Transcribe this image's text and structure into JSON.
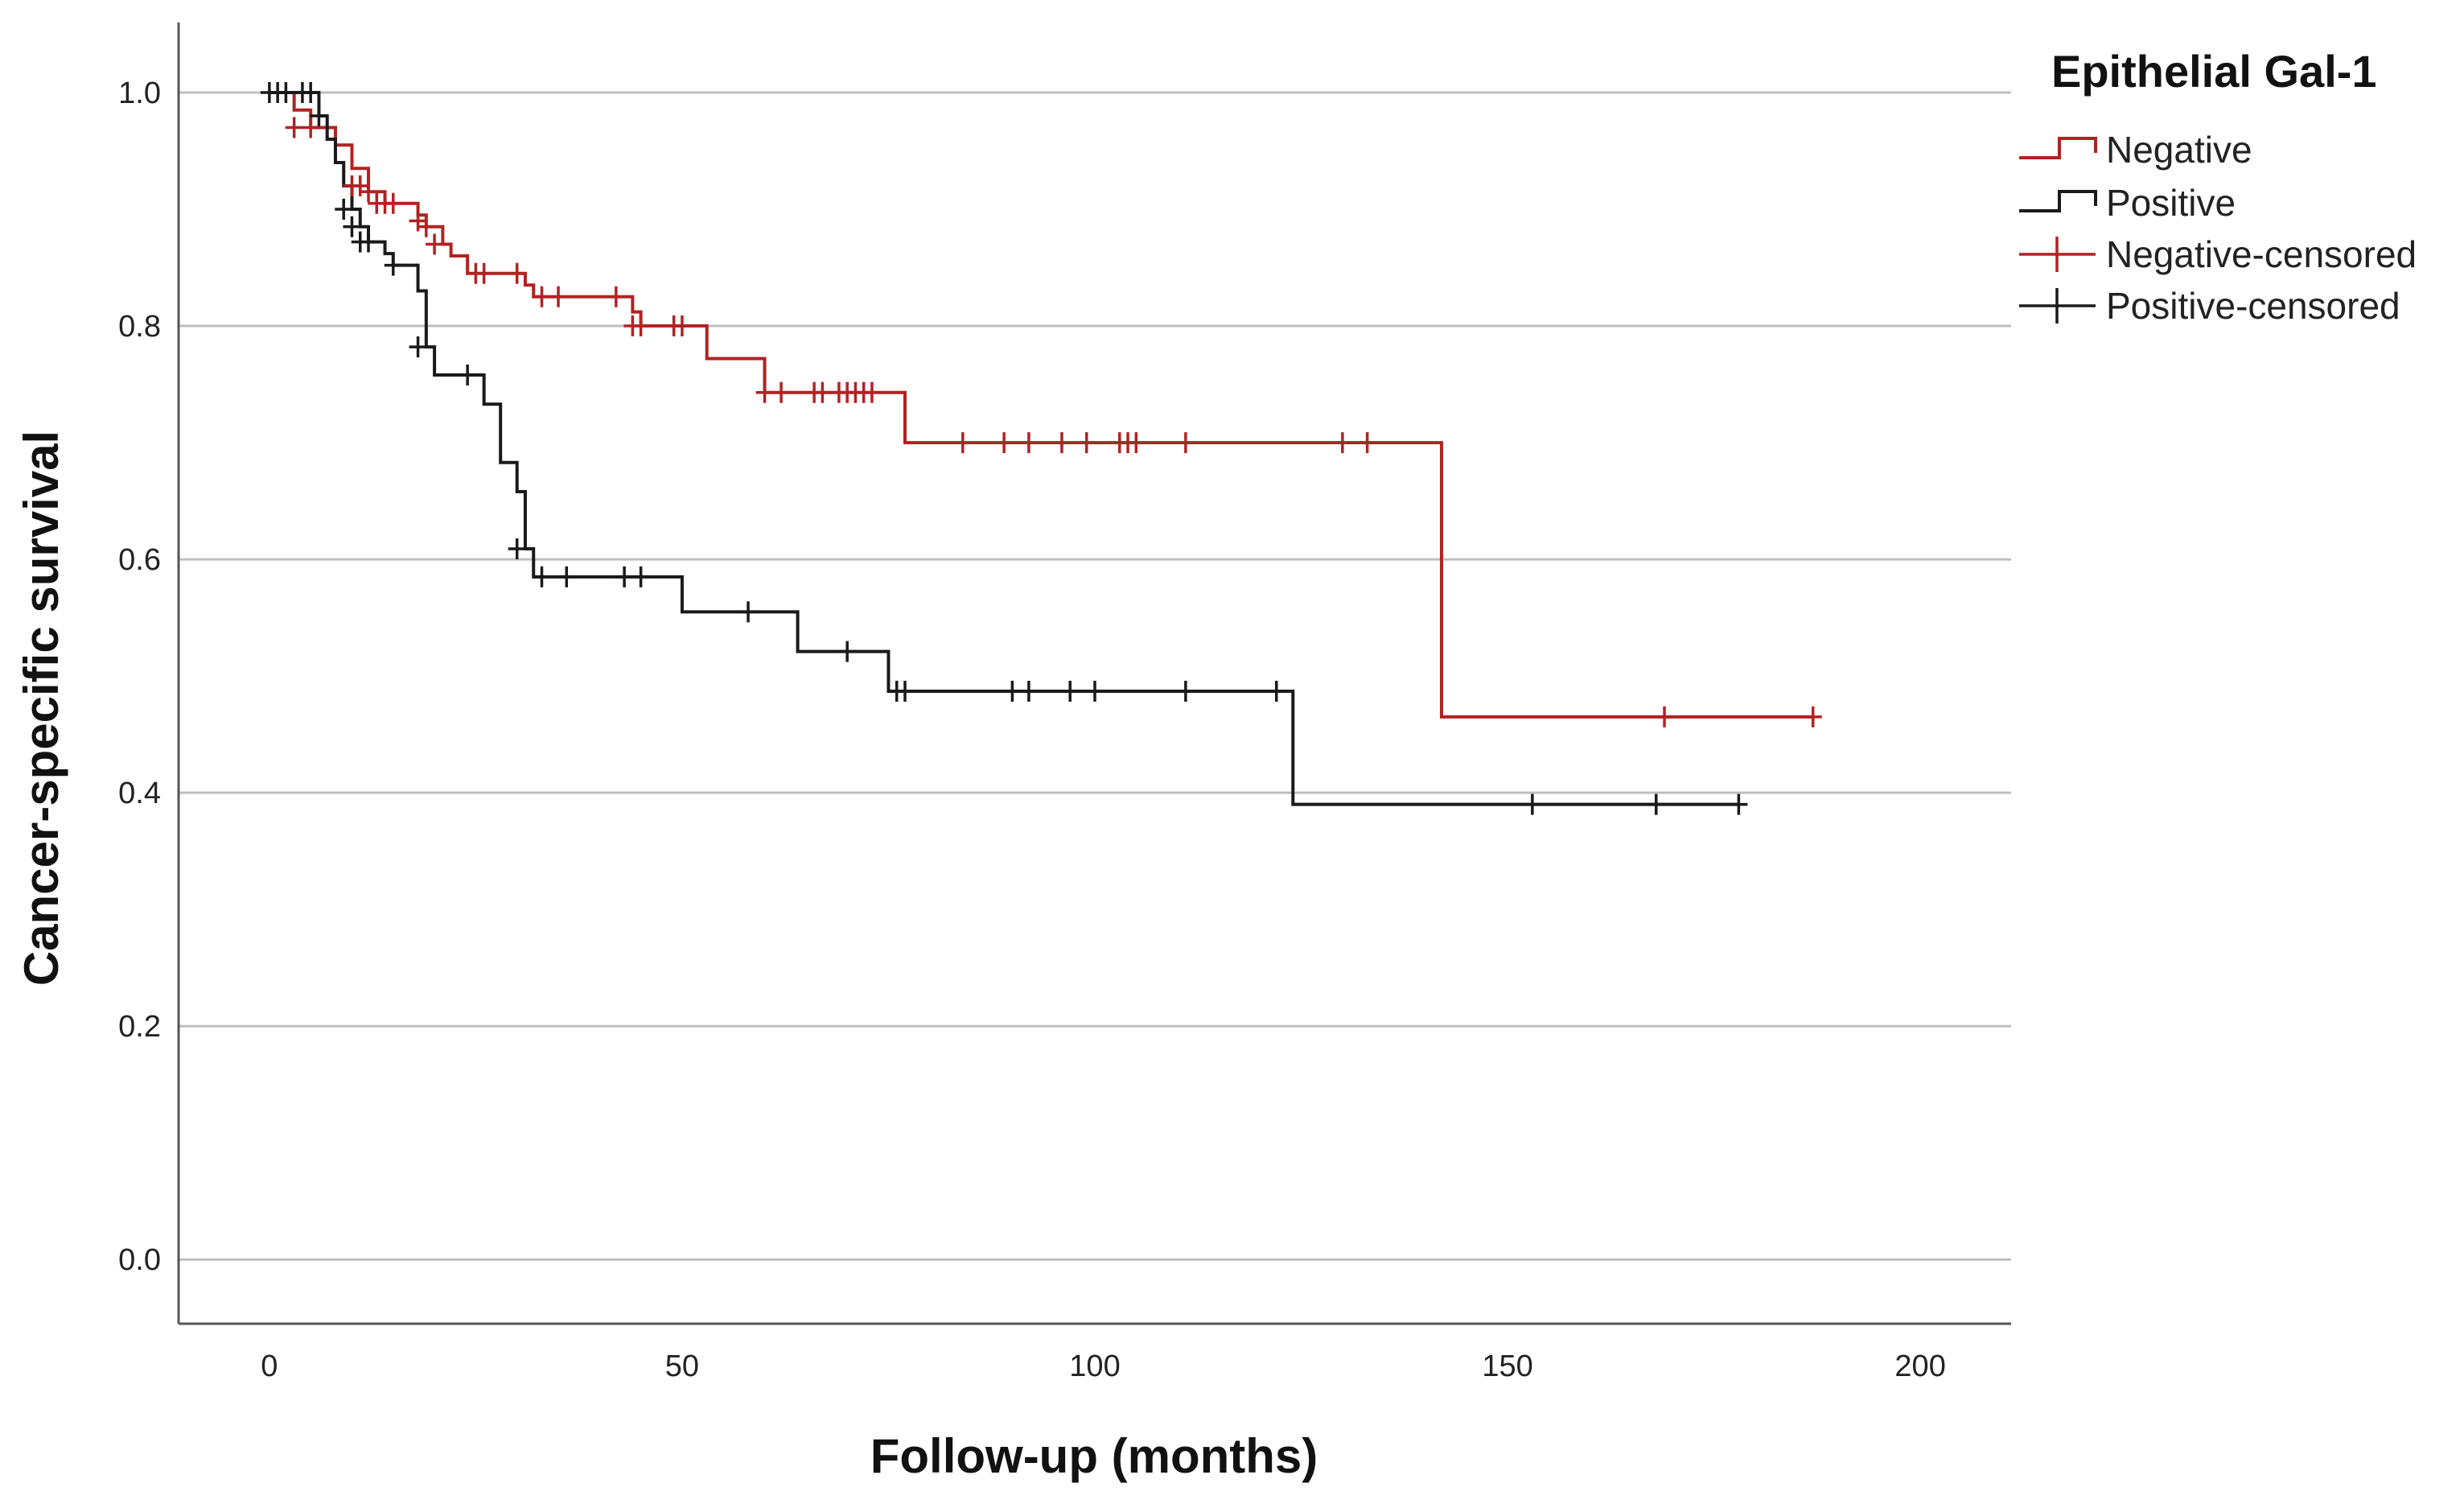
{
  "chart_data": {
    "type": "line",
    "title": "",
    "xlabel": "Follow-up (months)",
    "ylabel": "Cancer-specific survival",
    "xlim": [
      -11,
      211
    ],
    "ylim": [
      -0.055,
      1.06
    ],
    "xticks": [
      0,
      50,
      100,
      150,
      200
    ],
    "yticks": [
      0.0,
      0.2,
      0.4,
      0.6,
      0.8,
      1.0
    ],
    "ytick_labels": [
      "0.0",
      "0.2",
      "0.4",
      "0.6",
      "0.8",
      "1.0"
    ],
    "grid": "horizontal",
    "legend": {
      "title": "Epithelial Gal-1",
      "position": "top-right",
      "entries": [
        {
          "label": "Negative",
          "kind": "step",
          "color": "#b22222"
        },
        {
          "label": "Positive",
          "kind": "step",
          "color": "#1a1a1a"
        },
        {
          "label": "Negative-censored",
          "kind": "censor",
          "color": "#b22222"
        },
        {
          "label": "Positive-censored",
          "kind": "censor",
          "color": "#1a1a1a"
        }
      ]
    },
    "series": [
      {
        "name": "Negative",
        "color": "#b22222",
        "steps": [
          [
            0,
            1.0
          ],
          [
            3,
            0.985
          ],
          [
            5,
            0.97
          ],
          [
            8,
            0.955
          ],
          [
            10,
            0.935
          ],
          [
            12,
            0.915
          ],
          [
            14,
            0.905
          ],
          [
            18,
            0.895
          ],
          [
            19,
            0.885
          ],
          [
            21,
            0.87
          ],
          [
            22,
            0.86
          ],
          [
            24,
            0.845
          ],
          [
            31,
            0.835
          ],
          [
            32,
            0.825
          ],
          [
            44,
            0.812
          ],
          [
            45,
            0.8
          ],
          [
            53,
            0.772
          ],
          [
            60,
            0.743
          ],
          [
            77,
            0.7
          ],
          [
            142,
            0.465
          ],
          [
            187,
            0.465
          ]
        ],
        "censored": [
          [
            3,
            0.97
          ],
          [
            5,
            0.97
          ],
          [
            10,
            0.92
          ],
          [
            11,
            0.92
          ],
          [
            12,
            0.915
          ],
          [
            13,
            0.905
          ],
          [
            14,
            0.905
          ],
          [
            15,
            0.905
          ],
          [
            18,
            0.89
          ],
          [
            19,
            0.885
          ],
          [
            20,
            0.87
          ],
          [
            25,
            0.845
          ],
          [
            26,
            0.845
          ],
          [
            30,
            0.845
          ],
          [
            33,
            0.825
          ],
          [
            35,
            0.825
          ],
          [
            42,
            0.825
          ],
          [
            44,
            0.8
          ],
          [
            45,
            0.8
          ],
          [
            49,
            0.8
          ],
          [
            50,
            0.8
          ],
          [
            60,
            0.743
          ],
          [
            62,
            0.743
          ],
          [
            66,
            0.743
          ],
          [
            67,
            0.743
          ],
          [
            69,
            0.743
          ],
          [
            70,
            0.743
          ],
          [
            71,
            0.743
          ],
          [
            72,
            0.743
          ],
          [
            73,
            0.743
          ],
          [
            84,
            0.7
          ],
          [
            89,
            0.7
          ],
          [
            92,
            0.7
          ],
          [
            96,
            0.7
          ],
          [
            99,
            0.7
          ],
          [
            103,
            0.7
          ],
          [
            104,
            0.7
          ],
          [
            105,
            0.7
          ],
          [
            111,
            0.7
          ],
          [
            130,
            0.7
          ],
          [
            133,
            0.7
          ],
          [
            169,
            0.465
          ],
          [
            187,
            0.465
          ]
        ]
      },
      {
        "name": "Positive",
        "color": "#1a1a1a",
        "steps": [
          [
            0,
            1.0
          ],
          [
            6,
            0.98
          ],
          [
            7,
            0.96
          ],
          [
            8,
            0.94
          ],
          [
            9,
            0.92
          ],
          [
            10,
            0.9
          ],
          [
            11,
            0.885
          ],
          [
            12,
            0.872
          ],
          [
            14,
            0.862
          ],
          [
            15,
            0.852
          ],
          [
            18,
            0.83
          ],
          [
            19,
            0.782
          ],
          [
            20,
            0.758
          ],
          [
            26,
            0.733
          ],
          [
            28,
            0.683
          ],
          [
            30,
            0.658
          ],
          [
            31,
            0.609
          ],
          [
            32,
            0.585
          ],
          [
            50,
            0.555
          ],
          [
            64,
            0.521
          ],
          [
            75,
            0.487
          ],
          [
            124,
            0.39
          ],
          [
            178,
            0.39
          ]
        ],
        "censored": [
          [
            0,
            1.0
          ],
          [
            1,
            1.0
          ],
          [
            2,
            1.0
          ],
          [
            4,
            1.0
          ],
          [
            5,
            1.0
          ],
          [
            6,
            0.98
          ],
          [
            9,
            0.9
          ],
          [
            10,
            0.885
          ],
          [
            11,
            0.872
          ],
          [
            12,
            0.872
          ],
          [
            15,
            0.852
          ],
          [
            18,
            0.782
          ],
          [
            24,
            0.758
          ],
          [
            30,
            0.609
          ],
          [
            33,
            0.585
          ],
          [
            36,
            0.585
          ],
          [
            43,
            0.585
          ],
          [
            45,
            0.585
          ],
          [
            58,
            0.555
          ],
          [
            70,
            0.521
          ],
          [
            76,
            0.487
          ],
          [
            77,
            0.487
          ],
          [
            90,
            0.487
          ],
          [
            92,
            0.487
          ],
          [
            97,
            0.487
          ],
          [
            100,
            0.487
          ],
          [
            111,
            0.487
          ],
          [
            122,
            0.487
          ],
          [
            153,
            0.39
          ],
          [
            168,
            0.39
          ],
          [
            178,
            0.39
          ]
        ]
      }
    ]
  }
}
